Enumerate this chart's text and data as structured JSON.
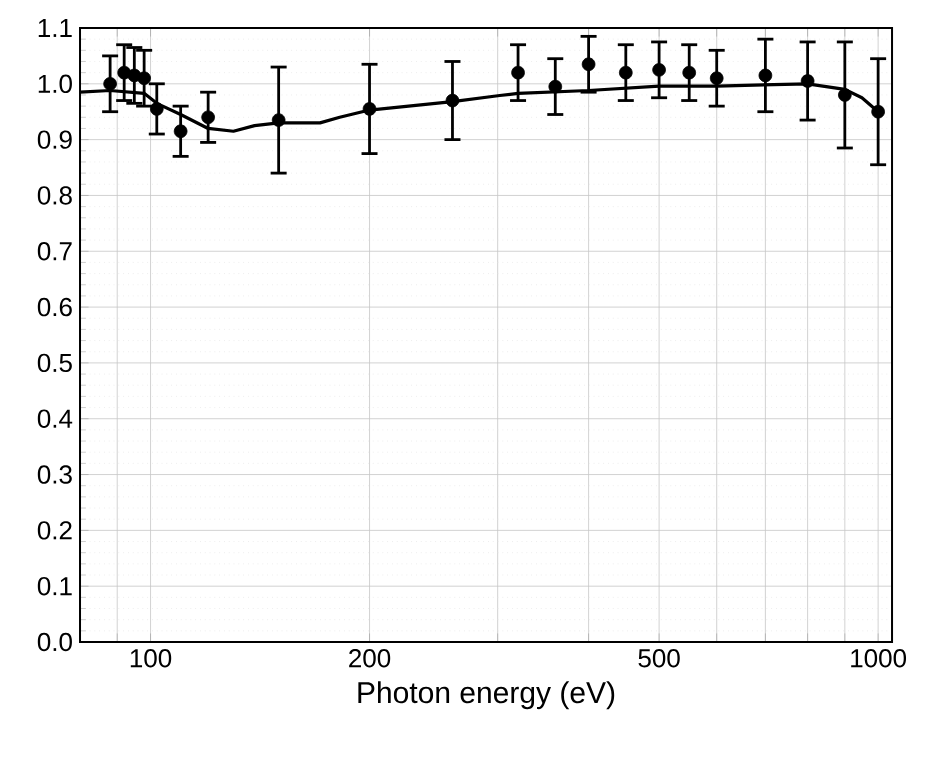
{
  "chart_data": {
    "type": "scatter",
    "xlabel": "Photon energy (eV)",
    "log": "x",
    "grid": true,
    "xlim": [
      80,
      1045
    ],
    "ylim": [
      0,
      1.1
    ],
    "xticks": [
      {
        "value": 80,
        "label": null
      },
      {
        "value": 90,
        "label": null
      },
      100,
      200,
      {
        "value": 300,
        "label": null
      },
      {
        "value": 400,
        "label": null
      },
      500,
      {
        "value": 600,
        "label": null
      },
      {
        "value": 700,
        "label": null
      },
      {
        "value": 800,
        "label": null
      },
      {
        "value": 900,
        "label": null
      },
      1000
    ],
    "yticks": [
      {
        "value": 0,
        "label": "0.0"
      },
      0.1,
      0.2,
      0.3,
      0.4,
      0.5,
      0.6,
      0.7,
      0.8,
      0.9,
      {
        "value": 1,
        "label": "1.0"
      },
      1.1
    ],
    "series": [
      {
        "color": "#000000",
        "marker": "circle",
        "x": [
          88,
          92,
          95,
          98,
          102,
          110,
          120,
          150,
          200,
          260,
          320,
          360,
          400,
          450,
          500,
          550,
          600,
          700,
          800,
          900,
          1000
        ],
        "values": [
          1.0,
          1.02,
          1.015,
          1.01,
          0.955,
          0.915,
          0.94,
          0.935,
          0.955,
          0.97,
          1.02,
          0.995,
          1.035,
          1.02,
          1.025,
          1.02,
          1.01,
          1.015,
          1.005,
          0.98,
          0.95
        ],
        "errors": [
          0.05,
          0.05,
          0.05,
          0.05,
          0.045,
          0.045,
          0.045,
          0.095,
          0.08,
          0.07,
          0.05,
          0.05,
          0.05,
          0.05,
          0.05,
          0.05,
          0.05,
          0.065,
          0.07,
          0.095,
          0.095
        ]
      },
      {
        "type": "line",
        "color": "#000000",
        "marker": "none",
        "x": [
          80,
          88,
          98,
          102,
          110,
          120,
          130,
          139,
          150,
          171,
          182,
          200,
          260,
          302,
          320,
          400,
          500,
          600,
          800,
          900,
          950,
          1000
        ],
        "values": [
          0.985,
          0.988,
          0.983,
          0.965,
          0.945,
          0.92,
          0.915,
          0.925,
          0.93,
          0.93,
          0.94,
          0.953,
          0.968,
          0.979,
          0.983,
          0.988,
          0.996,
          0.996,
          1.0,
          0.99,
          0.975,
          0.95
        ]
      }
    ]
  }
}
